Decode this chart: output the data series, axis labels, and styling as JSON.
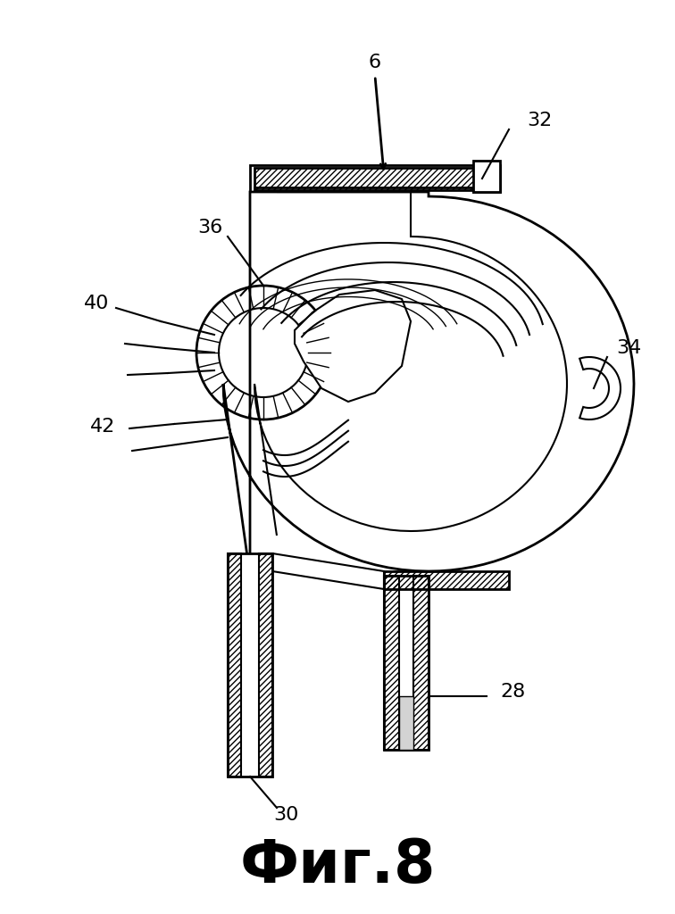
{
  "title": "Фиг.8",
  "background_color": "#ffffff",
  "line_color": "#000000",
  "figsize": [
    7.56,
    10.24
  ],
  "dpi": 100,
  "lw_main": 2.0,
  "lw_inner": 1.5,
  "lw_thin": 1.0
}
